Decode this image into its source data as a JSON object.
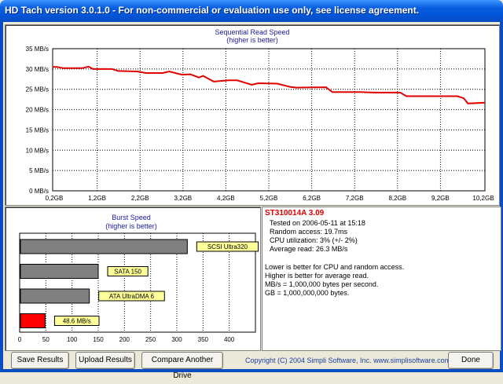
{
  "window": {
    "title": "HD Tach version 3.0.1.0  - For non-commercial or evaluation use only, see license agreement."
  },
  "colors": {
    "line": "#e00000",
    "bar_gray": "#808080",
    "bar_red": "#ff0000",
    "label_bg": "#ffff99",
    "title_blue": "#1a1a9e"
  },
  "chart_data": [
    {
      "type": "line",
      "title": "Sequential Read Speed",
      "subtitle": "(higher is better)",
      "xlabel": "",
      "ylabel": "",
      "y_ticks": [
        "35 MB/s",
        "30 MB/s",
        "25 MB/s",
        "20 MB/s",
        "15 MB/s",
        "10 MB/s",
        "5 MB/s",
        "0 MB/s"
      ],
      "x_ticks": [
        "0,2GB",
        "1,2GB",
        "2,2GB",
        "3,2GB",
        "4,2GB",
        "5,2GB",
        "6,2GB",
        "7,2GB",
        "8,2GB",
        "9,2GB",
        "10,2GB"
      ],
      "ylim": [
        0,
        35
      ],
      "xlim": [
        0,
        10.2
      ],
      "grid": true,
      "series": [
        {
          "x": [
            0,
            0.1,
            0.25,
            0.7,
            0.85,
            0.95,
            1.4,
            1.55,
            2.0,
            2.2,
            2.6,
            2.75,
            3.05,
            3.25,
            3.45,
            3.55,
            3.8,
            4.15,
            4.35,
            4.7,
            4.85,
            5.3,
            5.6,
            5.75,
            6.45,
            6.6,
            7.25,
            7.6,
            8.2,
            8.35,
            8.9,
            9.55,
            9.7,
            9.8,
            10.2
          ],
          "y": [
            30.5,
            30.5,
            30.2,
            30.2,
            30.6,
            30.0,
            30.0,
            29.5,
            29.4,
            29.0,
            29.0,
            29.4,
            28.6,
            28.7,
            27.9,
            28.3,
            26.9,
            27.2,
            27.2,
            26.1,
            26.5,
            26.4,
            25.6,
            25.4,
            25.5,
            24.3,
            24.3,
            24.2,
            24.2,
            23.3,
            23.3,
            23.3,
            22.8,
            21.5,
            21.7
          ]
        }
      ]
    },
    {
      "type": "bar",
      "orientation": "horizontal",
      "title": "Burst Speed",
      "subtitle": "(higher is better)",
      "x_ticks": [
        "0",
        "50",
        "100",
        "150",
        "200",
        "250",
        "300",
        "350",
        "400"
      ],
      "xlim": [
        0,
        450
      ],
      "grid": true,
      "bars": [
        {
          "value": 320,
          "label": "SCSI Ultra320",
          "color": "#808080"
        },
        {
          "value": 150,
          "label": "SATA 150",
          "color": "#808080"
        },
        {
          "value": 133,
          "label": "ATA UltraDMA 6",
          "color": "#808080"
        },
        {
          "value": 48.6,
          "label": "48.6 MB/s",
          "color": "#ff0000"
        }
      ]
    }
  ],
  "results": {
    "drive": "ST310014A 3.09",
    "tested": "Tested on 2006-05-11 at 15:18",
    "random_access": "Random access: 19.7ms",
    "cpu": "CPU utilization: 3% (+/- 2%)",
    "average_read": "Average read: 26.3 MB/s",
    "note1": "Lower is better for CPU and random access.",
    "note2": "Higher is better for average read.",
    "note3": "MB/s = 1,000,000 bytes per second.",
    "note4": "GB = 1,000,000,000 bytes."
  },
  "buttons": {
    "save": "Save Results",
    "upload": "Upload Results",
    "compare": "Compare Another Drive",
    "done": "Done"
  },
  "footer": {
    "copyright": "Copyright (C) 2004 Simpli Software, Inc. www.simplisoftware.com"
  }
}
